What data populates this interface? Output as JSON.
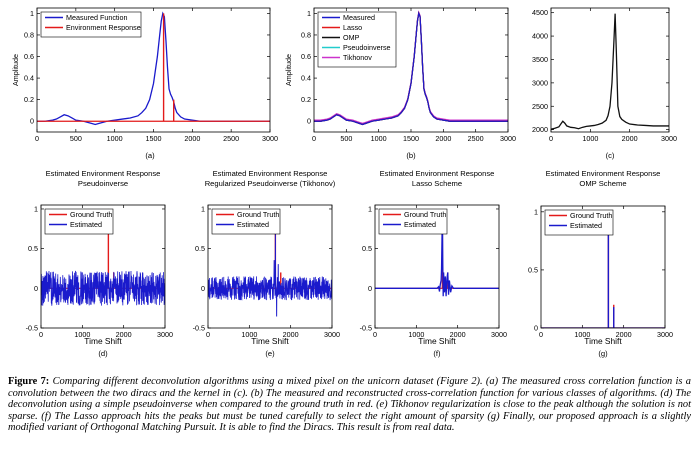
{
  "caption": {
    "label": "Figure 7:",
    "text": "Comparing different deconvolution algorithms using a mixed pixel on the unicorn dataset (Figure 2). (a) The measured cross correlation function is a convolution between the two diracs and the kernel in (c). (b) The measured and reconstructed cross-correlation function for various classes of algorithms. (d) The deconvolution using a simple pseudoinverse when compared to the ground truth in red. (e) Tikhonov regularization is close to the peak although the solution is not sparse. (f) The Lasso approach hits the peaks but must be tuned carefully to select the right amount of sparsity (g) Finally, our proposed approach is a slightly modified variant of Orthogonal Matching Pursuit. It is able to find the Diracs. This result is from real data."
  },
  "chart_data": [
    {
      "id": "a",
      "type": "line",
      "panel_label": "(a)",
      "title": "",
      "xlabel": "",
      "ylabel": "Amplitude",
      "xlim": [
        0,
        3000
      ],
      "ylim": [
        -0.1,
        1.05
      ],
      "xticks": [
        0,
        500,
        1000,
        1500,
        2000,
        2500,
        3000
      ],
      "yticks": [
        0,
        0.2,
        0.4,
        0.6,
        0.8,
        1
      ],
      "ytick_labels": [
        "0",
        "0.2",
        "0.4",
        "0.6",
        "0.8",
        "1"
      ],
      "grid": false,
      "legend": "top-left",
      "series": [
        {
          "name": "Measured Function",
          "color": "#1a1acc",
          "kind": "line",
          "x": [
            0,
            100,
            200,
            250,
            300,
            350,
            400,
            450,
            500,
            600,
            700,
            750,
            800,
            900,
            1000,
            1100,
            1200,
            1300,
            1350,
            1400,
            1450,
            1500,
            1550,
            1580,
            1600,
            1620,
            1640,
            1660,
            1680,
            1700,
            1720,
            1740,
            1760,
            1780,
            1800,
            1850,
            1900,
            2000,
            2100,
            2200,
            2300,
            2400,
            2500,
            2600,
            2700,
            2800,
            2900,
            3000
          ],
          "y": [
            0,
            0,
            0.01,
            0.02,
            0.04,
            0.06,
            0.05,
            0.03,
            0.01,
            0,
            -0.02,
            -0.03,
            -0.02,
            0,
            0.01,
            0.02,
            0.03,
            0.05,
            0.08,
            0.12,
            0.2,
            0.35,
            0.6,
            0.8,
            0.93,
            1.0,
            0.97,
            0.75,
            0.5,
            0.3,
            0.25,
            0.22,
            0.18,
            0.12,
            0.08,
            0.04,
            0.02,
            0.01,
            0,
            0,
            0,
            0,
            0,
            0,
            0,
            0,
            0,
            0
          ]
        },
        {
          "name": "Environment Response",
          "color": "#e31a1a",
          "kind": "stem",
          "baseline": 0,
          "x": [
            1630,
            1760
          ],
          "y": [
            1.0,
            0.2
          ]
        }
      ]
    },
    {
      "id": "b",
      "type": "line",
      "panel_label": "(b)",
      "title": "",
      "xlabel": "",
      "ylabel": "Amplitude",
      "xlim": [
        0,
        3000
      ],
      "ylim": [
        -0.1,
        1.05
      ],
      "xticks": [
        0,
        500,
        1000,
        1500,
        2000,
        2500,
        3000
      ],
      "yticks": [
        0,
        0.2,
        0.4,
        0.6,
        0.8,
        1
      ],
      "ytick_labels": [
        "0",
        "0.2",
        "0.4",
        "0.6",
        "0.8",
        "1"
      ],
      "grid": false,
      "legend": "top-left",
      "series": [
        {
          "name": "Measured",
          "color": "#1a1acc",
          "kind": "line"
        },
        {
          "name": "Lasso",
          "color": "#e31a1a",
          "kind": "line"
        },
        {
          "name": "OMP",
          "color": "#111111",
          "kind": "line"
        },
        {
          "name": "Pseudoinverse",
          "color": "#22cccc",
          "kind": "line"
        },
        {
          "name": "Tikhonov",
          "color": "#cc33cc",
          "kind": "line"
        }
      ],
      "shared_curve": {
        "x": [
          0,
          100,
          200,
          250,
          300,
          350,
          400,
          450,
          500,
          600,
          700,
          750,
          800,
          900,
          1000,
          1100,
          1200,
          1300,
          1350,
          1400,
          1450,
          1500,
          1550,
          1580,
          1600,
          1620,
          1640,
          1660,
          1680,
          1700,
          1720,
          1740,
          1760,
          1780,
          1800,
          1850,
          1900,
          2000,
          2100,
          2200,
          2300,
          2400,
          2500,
          2600,
          2700,
          2800,
          2900,
          3000
        ],
        "y": [
          0,
          0,
          0.01,
          0.02,
          0.04,
          0.06,
          0.05,
          0.03,
          0.01,
          0,
          -0.02,
          -0.03,
          -0.02,
          0,
          0.01,
          0.02,
          0.03,
          0.05,
          0.08,
          0.12,
          0.2,
          0.35,
          0.6,
          0.8,
          0.93,
          1.0,
          0.97,
          0.75,
          0.5,
          0.3,
          0.25,
          0.22,
          0.18,
          0.12,
          0.08,
          0.04,
          0.02,
          0.01,
          0,
          0,
          0,
          0,
          0,
          0,
          0,
          0,
          0,
          0
        ]
      }
    },
    {
      "id": "c",
      "type": "line",
      "panel_label": "(c)",
      "title": "",
      "xlabel": "",
      "ylabel": "",
      "xlim": [
        0,
        3000
      ],
      "ylim": [
        1950,
        4600
      ],
      "xticks": [
        0,
        1000,
        2000,
        3000
      ],
      "yticks": [
        2000,
        2500,
        3000,
        3500,
        4000,
        4500
      ],
      "ytick_labels": [
        "2000",
        "2500",
        "3000",
        "3500",
        "4000",
        "4500"
      ],
      "grid": false,
      "legend": "none",
      "series": [
        {
          "name": "",
          "color": "#111111",
          "kind": "line",
          "x": [
            0,
            100,
            200,
            250,
            300,
            350,
            400,
            500,
            600,
            700,
            800,
            900,
            1000,
            1100,
            1200,
            1300,
            1400,
            1450,
            1500,
            1550,
            1600,
            1630,
            1660,
            1700,
            1750,
            1800,
            1900,
            2000,
            2200,
            2400,
            2600,
            2800,
            3000
          ],
          "y": [
            2010,
            2030,
            2060,
            2120,
            2180,
            2140,
            2080,
            2050,
            2040,
            2020,
            2050,
            2070,
            2080,
            2090,
            2110,
            2140,
            2200,
            2300,
            2500,
            3000,
            3900,
            4480,
            3700,
            2500,
            2280,
            2220,
            2160,
            2120,
            2100,
            2090,
            2080,
            2080,
            2080
          ]
        }
      ]
    },
    {
      "id": "d",
      "type": "line",
      "panel_label": "(d)",
      "title": "Estimated Environment Response",
      "subtitle": "Pseudoinverse",
      "xlabel": "Time Shift",
      "ylabel": "",
      "xlim": [
        0,
        3000
      ],
      "ylim": [
        -0.5,
        1.05
      ],
      "xticks": [
        0,
        1000,
        2000,
        3000
      ],
      "yticks": [
        -0.5,
        0,
        0.5,
        1
      ],
      "ytick_labels": [
        "-0.5",
        "0",
        "0.5",
        "1"
      ],
      "grid": false,
      "legend": "top-left",
      "series": [
        {
          "name": "Ground Truth",
          "color": "#e31a1a",
          "kind": "stem",
          "baseline": 0,
          "x": [
            1630,
            1760
          ],
          "y": [
            1.0,
            0.2
          ]
        },
        {
          "name": "Estimated",
          "color": "#1a1acc",
          "kind": "noise",
          "noise": {
            "n": 700,
            "amplitude": 0.22,
            "peaks": []
          }
        }
      ]
    },
    {
      "id": "e",
      "type": "line",
      "panel_label": "(e)",
      "title": "Estimated Environment Response",
      "subtitle": "Regularized Pseudoinverse (Tikhonov)",
      "xlabel": "Time Shift",
      "ylabel": "",
      "xlim": [
        0,
        3000
      ],
      "ylim": [
        -0.5,
        1.05
      ],
      "xticks": [
        0,
        1000,
        2000,
        3000
      ],
      "yticks": [
        -0.5,
        0,
        0.5,
        1
      ],
      "ytick_labels": [
        "-0.5",
        "0",
        "0.5",
        "1"
      ],
      "grid": false,
      "legend": "top-left",
      "series": [
        {
          "name": "Ground Truth",
          "color": "#e31a1a",
          "kind": "stem",
          "baseline": 0,
          "x": [
            1630,
            1760
          ],
          "y": [
            1.0,
            0.2
          ]
        },
        {
          "name": "Estimated",
          "color": "#1a1acc",
          "kind": "noise",
          "noise": {
            "n": 700,
            "amplitude": 0.15,
            "peaks": [
              [
                1600,
                0.35
              ],
              [
                1630,
                0.78
              ],
              [
                1660,
                -0.35
              ],
              [
                1700,
                0.3
              ]
            ]
          }
        }
      ]
    },
    {
      "id": "f",
      "type": "line",
      "panel_label": "(f)",
      "title": "Estimated Environment Response",
      "subtitle": "Lasso Scheme",
      "xlabel": "Time Shift",
      "ylabel": "",
      "xlim": [
        0,
        3000
      ],
      "ylim": [
        -0.5,
        1.05
      ],
      "xticks": [
        0,
        1000,
        2000,
        3000
      ],
      "yticks": [
        -0.5,
        0,
        0.5,
        1
      ],
      "ytick_labels": [
        "-0.5",
        "0",
        "0.5",
        "1"
      ],
      "grid": false,
      "legend": "top-left",
      "series": [
        {
          "name": "Ground Truth",
          "color": "#e31a1a",
          "kind": "stem",
          "baseline": 0,
          "x": [
            1630,
            1760
          ],
          "y": [
            1.0,
            0.2
          ]
        },
        {
          "name": "Estimated",
          "color": "#1a1acc",
          "kind": "line",
          "x": [
            0,
            1500,
            1540,
            1560,
            1580,
            1600,
            1610,
            1620,
            1630,
            1640,
            1650,
            1660,
            1680,
            1700,
            1720,
            1740,
            1760,
            1780,
            1800,
            1830,
            1860,
            1900,
            3000
          ],
          "y": [
            0,
            0,
            0.02,
            -0.04,
            0.05,
            0.1,
            0.25,
            0.6,
            1.0,
            0.3,
            -0.1,
            0.2,
            -0.05,
            0.15,
            -0.1,
            0.12,
            0.2,
            -0.08,
            0.1,
            -0.05,
            0.03,
            0,
            0
          ]
        }
      ]
    },
    {
      "id": "g",
      "type": "line",
      "panel_label": "(g)",
      "title": "Estimated Environment Response",
      "subtitle": "OMP Scheme",
      "xlabel": "Time Shift",
      "ylabel": "",
      "xlim": [
        0,
        3000
      ],
      "ylim": [
        0,
        1.05
      ],
      "xticks": [
        0,
        1000,
        2000,
        3000
      ],
      "yticks": [
        0,
        0.5,
        1
      ],
      "ytick_labels": [
        "0",
        "0.5",
        "1"
      ],
      "grid": false,
      "legend": "top-left",
      "series": [
        {
          "name": "Ground Truth",
          "color": "#e31a1a",
          "kind": "stem",
          "baseline": 0,
          "x": [
            1630,
            1760
          ],
          "y": [
            1.0,
            0.2
          ]
        },
        {
          "name": "Estimated",
          "color": "#1a1acc",
          "kind": "stem",
          "baseline": 0,
          "x": [
            1630,
            1760
          ],
          "y": [
            1.0,
            0.18
          ]
        }
      ]
    }
  ]
}
